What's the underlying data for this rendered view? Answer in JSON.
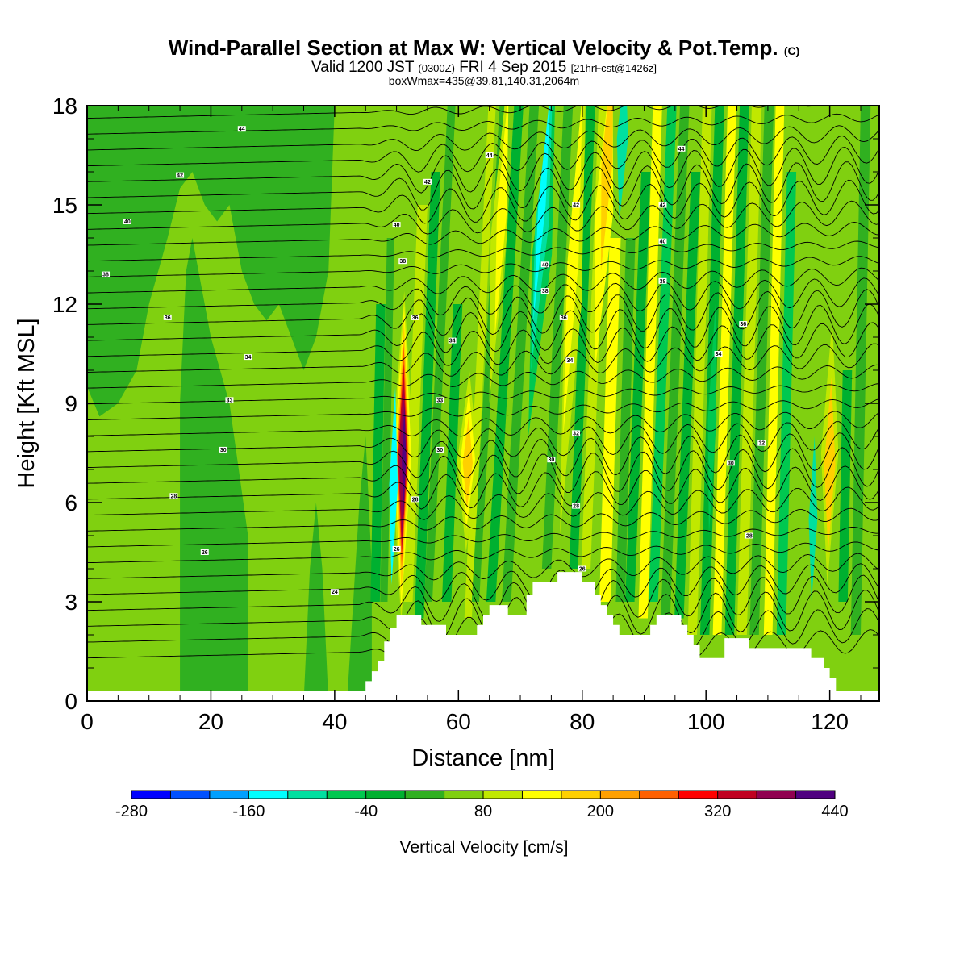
{
  "header": {
    "title_main": "Wind-Parallel Section at Max W: Vertical Velocity & Pot.Temp.",
    "title_tag": "(C)",
    "valid_prefix": "Valid 1200 JST",
    "valid_utc": "(0300Z)",
    "valid_date": "FRI 4 Sep 2015",
    "valid_fcst": "[21hrFcst@1426z]",
    "boxwmax": "boxWmax=435@39.81,140.31,2064m"
  },
  "chart_data": {
    "type": "heatmap",
    "xlabel": "Distance [nm]",
    "ylabel": "Height [Kft MSL]",
    "xlim": [
      0,
      128
    ],
    "ylim": [
      0,
      18
    ],
    "x_ticks": [
      "0",
      "20",
      "40",
      "60",
      "80",
      "100",
      "120"
    ],
    "y_ticks": [
      "0",
      "3",
      "6",
      "9",
      "12",
      "15",
      "18"
    ],
    "colorbar": {
      "label": "Vertical Velocity [cm/s]",
      "tick_labels": [
        "-280",
        "-160",
        "-40",
        "80",
        "200",
        "320",
        "440"
      ],
      "colors": [
        "#0000ff",
        "#0050ff",
        "#00a0ff",
        "#00ffff",
        "#00e0a0",
        "#00c850",
        "#00b030",
        "#30b020",
        "#80d010",
        "#c0e800",
        "#ffff00",
        "#ffd000",
        "#ffa000",
        "#ff6000",
        "#ff0000",
        "#c00020",
        "#900050",
        "#500080"
      ]
    },
    "w_features": [
      {
        "x": 51,
        "z_low": 4.2,
        "z_high": 11.5,
        "peak": 435
      },
      {
        "x": 61.5,
        "z_low": 5.5,
        "z_high": 9.0,
        "peak": 200
      },
      {
        "x": 66,
        "z_low": 9,
        "z_high": 18,
        "peak": 120
      },
      {
        "x": 73.5,
        "z_low": 10,
        "z_high": 18,
        "peak": -160
      },
      {
        "x": 78,
        "z_low": 4,
        "z_high": 18,
        "peak": 100
      },
      {
        "x": 83,
        "z_low": 14,
        "z_high": 18,
        "peak": 200
      },
      {
        "x": 86,
        "z_low": 16,
        "z_high": 18,
        "peak": -160
      },
      {
        "x": 120,
        "z_low": 4,
        "z_high": 9,
        "peak": 160
      },
      {
        "x": 117,
        "z_low": 3,
        "z_high": 7,
        "peak": -160
      }
    ],
    "terrain_profile": [
      [
        0,
        0.3
      ],
      [
        44,
        0.3
      ],
      [
        45,
        0.6
      ],
      [
        46,
        0.9
      ],
      [
        47,
        1.2
      ],
      [
        48,
        1.8
      ],
      [
        49,
        2.2
      ],
      [
        50,
        2.6
      ],
      [
        53,
        2.6
      ],
      [
        54,
        2.3
      ],
      [
        57,
        2.3
      ],
      [
        58,
        2.0
      ],
      [
        62,
        2.0
      ],
      [
        63,
        2.3
      ],
      [
        64,
        2.6
      ],
      [
        65,
        2.9
      ],
      [
        67,
        2.9
      ],
      [
        68,
        2.6
      ],
      [
        70,
        2.6
      ],
      [
        71,
        3.2
      ],
      [
        72,
        3.6
      ],
      [
        75,
        3.6
      ],
      [
        76,
        3.9
      ],
      [
        79,
        3.9
      ],
      [
        80,
        3.6
      ],
      [
        82,
        3.2
      ],
      [
        83,
        2.9
      ],
      [
        84,
        2.6
      ],
      [
        85,
        2.3
      ],
      [
        86,
        2.0
      ],
      [
        90,
        2.0
      ],
      [
        91,
        2.3
      ],
      [
        92,
        2.6
      ],
      [
        95,
        2.6
      ],
      [
        96,
        2.3
      ],
      [
        97,
        2.0
      ],
      [
        98,
        1.7
      ],
      [
        99,
        1.3
      ],
      [
        102,
        1.3
      ],
      [
        103,
        1.9
      ],
      [
        106,
        1.9
      ],
      [
        107,
        1.6
      ],
      [
        116,
        1.6
      ],
      [
        117,
        1.3
      ],
      [
        119,
        1.0
      ],
      [
        120,
        0.7
      ],
      [
        121,
        0.3
      ],
      [
        128,
        0.3
      ]
    ],
    "theta_labels": [
      {
        "x": 25,
        "z": 17.3,
        "text": "44"
      },
      {
        "x": 15,
        "z": 15.9,
        "text": "42"
      },
      {
        "x": 6.5,
        "z": 14.5,
        "text": "40"
      },
      {
        "x": 3,
        "z": 12.9,
        "text": "38"
      },
      {
        "x": 13,
        "z": 11.6,
        "text": "36"
      },
      {
        "x": 26,
        "z": 10.4,
        "text": "34"
      },
      {
        "x": 23,
        "z": 9.1,
        "text": "33"
      },
      {
        "x": 22,
        "z": 7.6,
        "text": "30"
      },
      {
        "x": 14,
        "z": 6.2,
        "text": "28"
      },
      {
        "x": 19,
        "z": 4.5,
        "text": "26"
      },
      {
        "x": 40,
        "z": 3.3,
        "text": "24"
      },
      {
        "x": 50,
        "z": 14.4,
        "text": "40"
      },
      {
        "x": 51,
        "z": 13.3,
        "text": "38"
      },
      {
        "x": 53,
        "z": 11.6,
        "text": "36"
      },
      {
        "x": 59,
        "z": 10.9,
        "text": "34"
      },
      {
        "x": 57,
        "z": 9.1,
        "text": "33"
      },
      {
        "x": 57,
        "z": 7.6,
        "text": "30"
      },
      {
        "x": 53,
        "z": 6.1,
        "text": "28"
      },
      {
        "x": 50,
        "z": 4.6,
        "text": "26"
      },
      {
        "x": 55,
        "z": 15.7,
        "text": "42"
      },
      {
        "x": 65,
        "z": 16.5,
        "text": "44"
      },
      {
        "x": 79,
        "z": 15.0,
        "text": "42"
      },
      {
        "x": 74,
        "z": 13.2,
        "text": "40"
      },
      {
        "x": 74,
        "z": 12.4,
        "text": "38"
      },
      {
        "x": 77,
        "z": 11.6,
        "text": "36"
      },
      {
        "x": 78,
        "z": 10.3,
        "text": "34"
      },
      {
        "x": 79,
        "z": 8.1,
        "text": "32"
      },
      {
        "x": 75,
        "z": 7.3,
        "text": "30"
      },
      {
        "x": 79,
        "z": 5.9,
        "text": "28"
      },
      {
        "x": 80,
        "z": 4.0,
        "text": "26"
      },
      {
        "x": 96,
        "z": 16.7,
        "text": "44"
      },
      {
        "x": 93,
        "z": 15.0,
        "text": "42"
      },
      {
        "x": 93,
        "z": 13.9,
        "text": "40"
      },
      {
        "x": 93,
        "z": 12.7,
        "text": "38"
      },
      {
        "x": 106,
        "z": 11.4,
        "text": "36"
      },
      {
        "x": 102,
        "z": 10.5,
        "text": "34"
      },
      {
        "x": 109,
        "z": 7.8,
        "text": "32"
      },
      {
        "x": 104,
        "z": 7.2,
        "text": "30"
      },
      {
        "x": 107,
        "z": 5.0,
        "text": "28"
      }
    ]
  }
}
